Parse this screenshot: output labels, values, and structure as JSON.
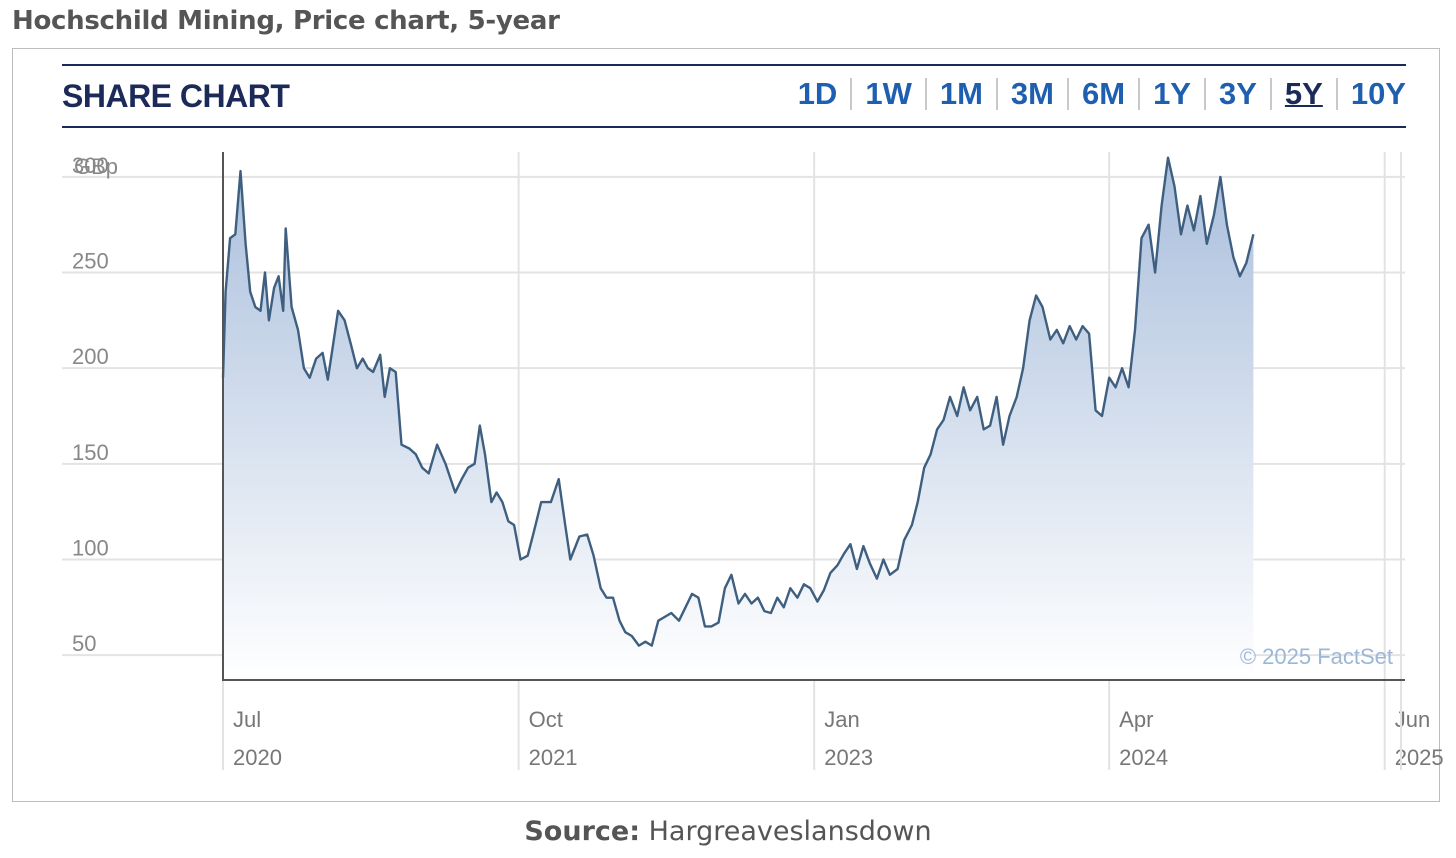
{
  "page_title": "Hochschild Mining, Price chart, 5-year",
  "header": {
    "title": "SHARE CHART",
    "ranges": [
      "1D",
      "1W",
      "1M",
      "3M",
      "6M",
      "1Y",
      "3Y",
      "5Y",
      "10Y"
    ],
    "active_range": "5Y"
  },
  "source": {
    "label": "Source:",
    "value": "Hargreaveslansdown"
  },
  "colors": {
    "line": "#3e5f80",
    "fill_top": "#a9bedc",
    "fill_bottom": "#ffffff",
    "accent": "#1c2a59",
    "tab": "#1f5fb0"
  },
  "chart_data": {
    "type": "area",
    "ylabel": "GBp",
    "ylim": [
      37,
      313
    ],
    "yticks": [
      50,
      100,
      150,
      200,
      250,
      300
    ],
    "grid": true,
    "watermark": "© 2025 FactSet",
    "xticks": [
      {
        "month": "Jul",
        "year": "2020",
        "x": "2020-07-01"
      },
      {
        "month": "Oct",
        "year": "2021",
        "x": "2021-10-01"
      },
      {
        "month": "Jan",
        "year": "2023",
        "x": "2023-01-01"
      },
      {
        "month": "Apr",
        "year": "2024",
        "x": "2024-04-01"
      },
      {
        "month": "Jun",
        "year": "2025",
        "x": "2025-06-01"
      }
    ],
    "xlim": [
      "2020-07-01",
      "2025-06-20"
    ],
    "series": [
      {
        "points": [
          [
            "2020-07-01",
            195
          ],
          [
            "2020-07-05",
            240
          ],
          [
            "2020-07-12",
            268
          ],
          [
            "2020-07-20",
            270
          ],
          [
            "2020-07-28",
            303
          ],
          [
            "2020-08-05",
            265
          ],
          [
            "2020-08-12",
            240
          ],
          [
            "2020-08-20",
            232
          ],
          [
            "2020-08-28",
            230
          ],
          [
            "2020-09-04",
            250
          ],
          [
            "2020-09-10",
            225
          ],
          [
            "2020-09-18",
            242
          ],
          [
            "2020-09-25",
            248
          ],
          [
            "2020-10-02",
            230
          ],
          [
            "2020-10-06",
            273
          ],
          [
            "2020-10-15",
            232
          ],
          [
            "2020-10-25",
            220
          ],
          [
            "2020-11-03",
            200
          ],
          [
            "2020-11-12",
            195
          ],
          [
            "2020-11-22",
            205
          ],
          [
            "2020-12-02",
            208
          ],
          [
            "2020-12-10",
            194
          ],
          [
            "2020-12-18",
            212
          ],
          [
            "2020-12-26",
            230
          ],
          [
            "2021-01-05",
            225
          ],
          [
            "2021-01-15",
            212
          ],
          [
            "2021-01-24",
            200
          ],
          [
            "2021-02-02",
            205
          ],
          [
            "2021-02-10",
            200
          ],
          [
            "2021-02-18",
            198
          ],
          [
            "2021-03-01",
            207
          ],
          [
            "2021-03-08",
            185
          ],
          [
            "2021-03-16",
            200
          ],
          [
            "2021-03-25",
            198
          ],
          [
            "2021-04-03",
            160
          ],
          [
            "2021-04-15",
            158
          ],
          [
            "2021-04-25",
            155
          ],
          [
            "2021-05-05",
            148
          ],
          [
            "2021-05-15",
            145
          ],
          [
            "2021-05-28",
            160
          ],
          [
            "2021-06-10",
            150
          ],
          [
            "2021-06-25",
            135
          ],
          [
            "2021-07-05",
            142
          ],
          [
            "2021-07-15",
            148
          ],
          [
            "2021-07-25",
            150
          ],
          [
            "2021-08-02",
            170
          ],
          [
            "2021-08-10",
            155
          ],
          [
            "2021-08-20",
            130
          ],
          [
            "2021-08-28",
            135
          ],
          [
            "2021-09-06",
            130
          ],
          [
            "2021-09-15",
            120
          ],
          [
            "2021-09-24",
            118
          ],
          [
            "2021-10-04",
            100
          ],
          [
            "2021-10-15",
            102
          ],
          [
            "2021-10-25",
            115
          ],
          [
            "2021-11-05",
            130
          ],
          [
            "2021-11-20",
            130
          ],
          [
            "2021-12-02",
            142
          ],
          [
            "2021-12-12",
            118
          ],
          [
            "2021-12-20",
            100
          ],
          [
            "2022-01-03",
            112
          ],
          [
            "2022-01-15",
            113
          ],
          [
            "2022-01-25",
            102
          ],
          [
            "2022-02-05",
            85
          ],
          [
            "2022-02-14",
            80
          ],
          [
            "2022-02-24",
            80
          ],
          [
            "2022-03-06",
            68
          ],
          [
            "2022-03-15",
            62
          ],
          [
            "2022-03-25",
            60
          ],
          [
            "2022-04-05",
            55
          ],
          [
            "2022-04-15",
            57
          ],
          [
            "2022-04-25",
            55
          ],
          [
            "2022-05-05",
            68
          ],
          [
            "2022-05-15",
            70
          ],
          [
            "2022-05-25",
            72
          ],
          [
            "2022-06-06",
            68
          ],
          [
            "2022-06-16",
            75
          ],
          [
            "2022-06-26",
            82
          ],
          [
            "2022-07-06",
            80
          ],
          [
            "2022-07-16",
            65
          ],
          [
            "2022-07-26",
            65
          ],
          [
            "2022-08-06",
            67
          ],
          [
            "2022-08-16",
            85
          ],
          [
            "2022-08-26",
            92
          ],
          [
            "2022-09-06",
            77
          ],
          [
            "2022-09-16",
            82
          ],
          [
            "2022-09-26",
            77
          ],
          [
            "2022-10-06",
            80
          ],
          [
            "2022-10-16",
            73
          ],
          [
            "2022-10-26",
            72
          ],
          [
            "2022-11-05",
            80
          ],
          [
            "2022-11-15",
            75
          ],
          [
            "2022-11-25",
            85
          ],
          [
            "2022-12-06",
            80
          ],
          [
            "2022-12-16",
            87
          ],
          [
            "2022-12-26",
            85
          ],
          [
            "2023-01-06",
            78
          ],
          [
            "2023-01-16",
            84
          ],
          [
            "2023-01-26",
            93
          ],
          [
            "2023-02-06",
            97
          ],
          [
            "2023-02-16",
            103
          ],
          [
            "2023-02-26",
            108
          ],
          [
            "2023-03-08",
            95
          ],
          [
            "2023-03-18",
            107
          ],
          [
            "2023-03-28",
            98
          ],
          [
            "2023-04-08",
            90
          ],
          [
            "2023-04-18",
            100
          ],
          [
            "2023-04-28",
            92
          ],
          [
            "2023-05-10",
            95
          ],
          [
            "2023-05-20",
            110
          ],
          [
            "2023-06-01",
            118
          ],
          [
            "2023-06-10",
            130
          ],
          [
            "2023-06-20",
            148
          ],
          [
            "2023-06-30",
            155
          ],
          [
            "2023-07-10",
            168
          ],
          [
            "2023-07-20",
            173
          ],
          [
            "2023-07-30",
            185
          ],
          [
            "2023-08-10",
            175
          ],
          [
            "2023-08-20",
            190
          ],
          [
            "2023-08-30",
            178
          ],
          [
            "2023-09-10",
            185
          ],
          [
            "2023-09-20",
            168
          ],
          [
            "2023-09-30",
            170
          ],
          [
            "2023-10-10",
            185
          ],
          [
            "2023-10-20",
            160
          ],
          [
            "2023-10-30",
            175
          ],
          [
            "2023-11-10",
            185
          ],
          [
            "2023-11-20",
            200
          ],
          [
            "2023-11-30",
            225
          ],
          [
            "2023-12-10",
            238
          ],
          [
            "2023-12-20",
            232
          ],
          [
            "2024-01-01",
            215
          ],
          [
            "2024-01-11",
            220
          ],
          [
            "2024-01-21",
            213
          ],
          [
            "2024-01-31",
            222
          ],
          [
            "2024-02-10",
            215
          ],
          [
            "2024-02-20",
            222
          ],
          [
            "2024-03-01",
            218
          ],
          [
            "2024-03-11",
            178
          ],
          [
            "2024-03-21",
            175
          ],
          [
            "2024-04-01",
            195
          ],
          [
            "2024-04-11",
            190
          ],
          [
            "2024-04-21",
            200
          ],
          [
            "2024-05-01",
            190
          ],
          [
            "2024-05-11",
            220
          ],
          [
            "2024-05-21",
            268
          ],
          [
            "2024-06-01",
            275
          ],
          [
            "2024-06-11",
            250
          ],
          [
            "2024-06-21",
            285
          ],
          [
            "2024-07-01",
            310
          ],
          [
            "2024-07-11",
            295
          ],
          [
            "2024-07-21",
            270
          ],
          [
            "2024-07-31",
            285
          ],
          [
            "2024-08-10",
            272
          ],
          [
            "2024-08-20",
            290
          ],
          [
            "2024-08-30",
            265
          ],
          [
            "2024-09-10",
            280
          ],
          [
            "2024-09-20",
            300
          ],
          [
            "2024-09-30",
            275
          ],
          [
            "2024-10-10",
            258
          ],
          [
            "2024-10-20",
            248
          ],
          [
            "2024-10-30",
            255
          ],
          [
            "2024-11-10",
            270
          ]
        ]
      }
    ]
  }
}
